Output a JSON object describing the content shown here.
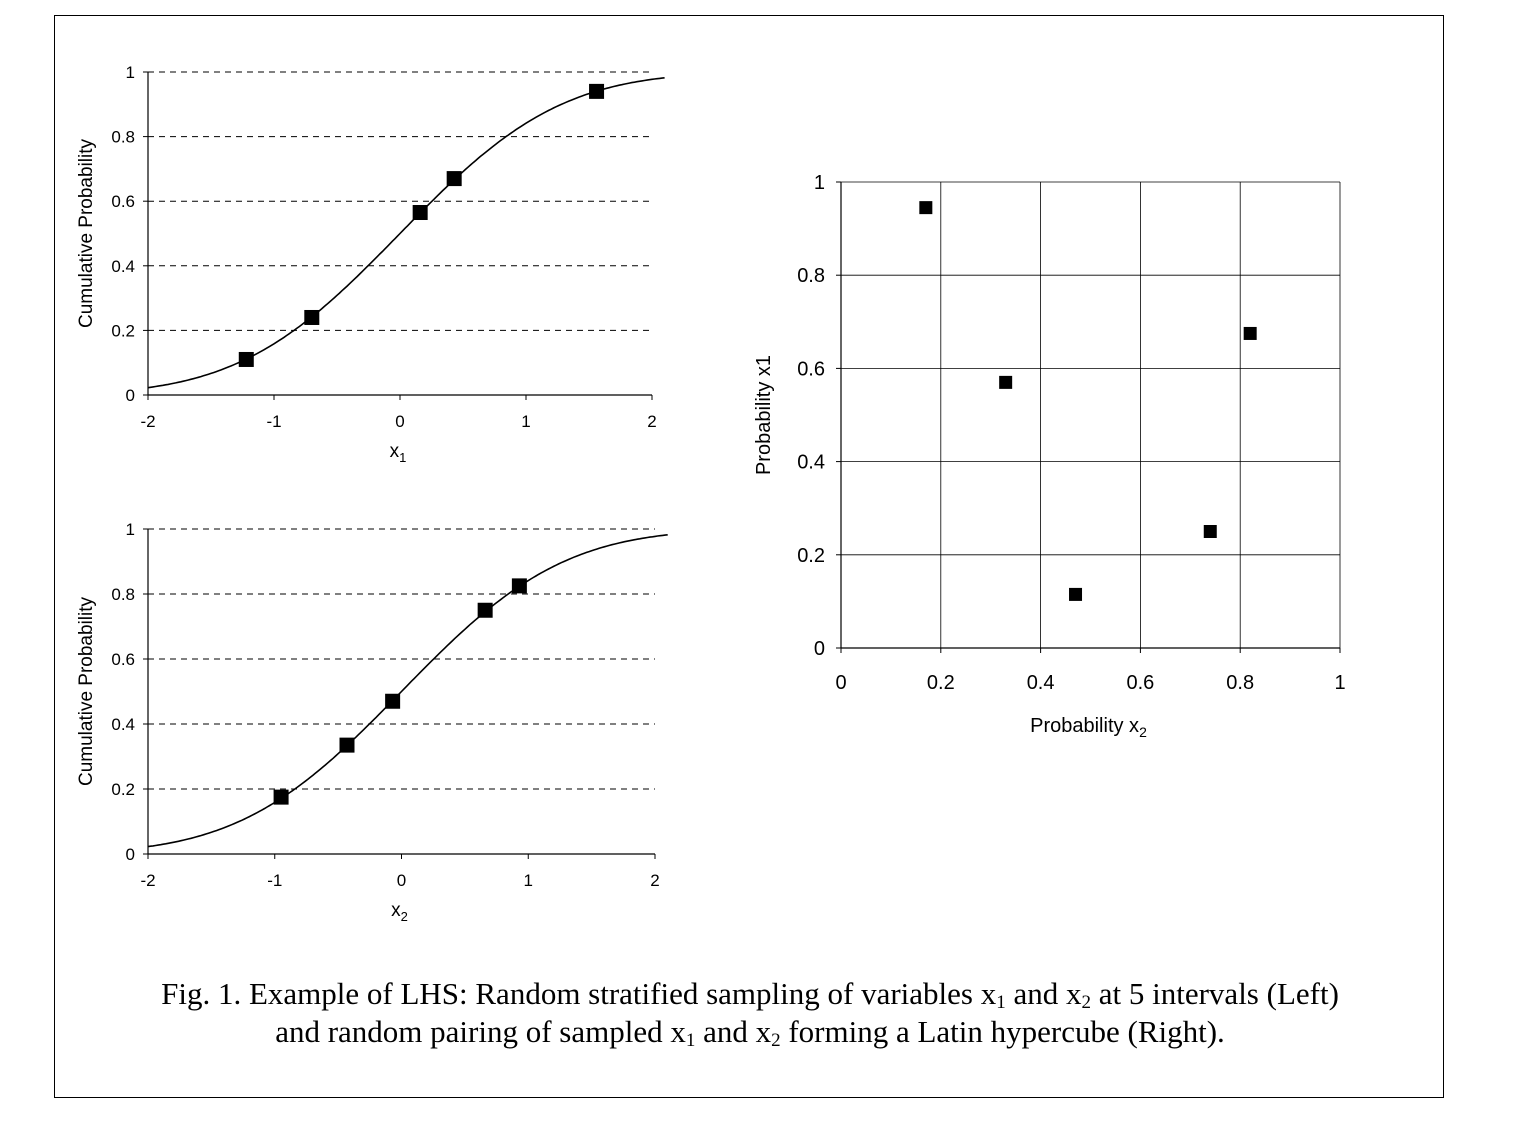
{
  "chart_data": [
    {
      "type": "line",
      "title": "",
      "xlabel": "x",
      "xlabel_sub": "1",
      "ylabel": "Cumulative Probability",
      "xlim": [
        -2,
        2
      ],
      "ylim": [
        0,
        1
      ],
      "x_ticks": [
        "-2",
        "-1",
        "0",
        "1",
        "2"
      ],
      "y_ticks": [
        "0",
        "0.2",
        "0.4",
        "0.6",
        "0.8",
        "1"
      ],
      "grid": "horizontal-dashed",
      "series": [
        {
          "values": [
            [
              -2.0,
              0.023
            ],
            [
              -1.6,
              0.055
            ],
            [
              -1.2,
              0.115
            ],
            [
              -0.8,
              0.212
            ],
            [
              -0.4,
              0.345
            ],
            [
              0.0,
              0.5
            ],
            [
              0.4,
              0.655
            ],
            [
              0.8,
              0.788
            ],
            [
              1.2,
              0.885
            ],
            [
              1.6,
              0.945
            ],
            [
              2.0,
              0.977
            ]
          ]
        }
      ],
      "markers": [
        [
          -1.22,
          0.11
        ],
        [
          -0.7,
          0.24
        ],
        [
          0.16,
          0.565
        ],
        [
          0.43,
          0.67
        ],
        [
          1.56,
          0.94
        ]
      ]
    },
    {
      "type": "line",
      "title": "",
      "xlabel": "x",
      "xlabel_sub": "2",
      "ylabel": "Cumulative Probability",
      "xlim": [
        -2,
        2
      ],
      "ylim": [
        0,
        1
      ],
      "x_ticks": [
        "-2",
        "-1",
        "0",
        "1",
        "2"
      ],
      "y_ticks": [
        "0",
        "0.2",
        "0.4",
        "0.6",
        "0.8",
        "1"
      ],
      "grid": "horizontal-dashed",
      "series": [
        {
          "values": [
            [
              -2.0,
              0.023
            ],
            [
              -1.6,
              0.055
            ],
            [
              -1.2,
              0.115
            ],
            [
              -0.8,
              0.212
            ],
            [
              -0.4,
              0.345
            ],
            [
              0.0,
              0.5
            ],
            [
              0.4,
              0.655
            ],
            [
              0.8,
              0.788
            ],
            [
              1.2,
              0.885
            ],
            [
              1.6,
              0.945
            ],
            [
              2.0,
              0.977
            ]
          ]
        }
      ],
      "markers": [
        [
          -0.95,
          0.175
        ],
        [
          -0.43,
          0.335
        ],
        [
          -0.07,
          0.47
        ],
        [
          0.66,
          0.75
        ],
        [
          0.93,
          0.825
        ]
      ]
    },
    {
      "type": "scatter",
      "title": "",
      "xlabel": "Probability x",
      "xlabel_sub": "2",
      "ylabel": "Probability x1",
      "xlim": [
        0,
        1
      ],
      "ylim": [
        0,
        1
      ],
      "x_ticks": [
        "0",
        "0.2",
        "0.4",
        "0.6",
        "0.8",
        "1"
      ],
      "y_ticks": [
        "0",
        "0.2",
        "0.4",
        "0.6",
        "0.8",
        "1"
      ],
      "grid": "both-solid",
      "points": [
        [
          0.17,
          0.945
        ],
        [
          0.33,
          0.57
        ],
        [
          0.47,
          0.115
        ],
        [
          0.74,
          0.25
        ],
        [
          0.82,
          0.675
        ]
      ]
    }
  ],
  "caption": {
    "line1_a": "Fig. 1. Example of LHS: Random stratified sampling of variables x",
    "sub1": "1",
    "line1_b": " and x",
    "sub2": "2",
    "line1_c": " at 5 intervals (Left)",
    "line2_a": "and random pairing of sampled x",
    "sub3": "1",
    "line2_b": " and x",
    "sub4": "2",
    "line2_c": " forming a Latin hypercube (Right)."
  }
}
